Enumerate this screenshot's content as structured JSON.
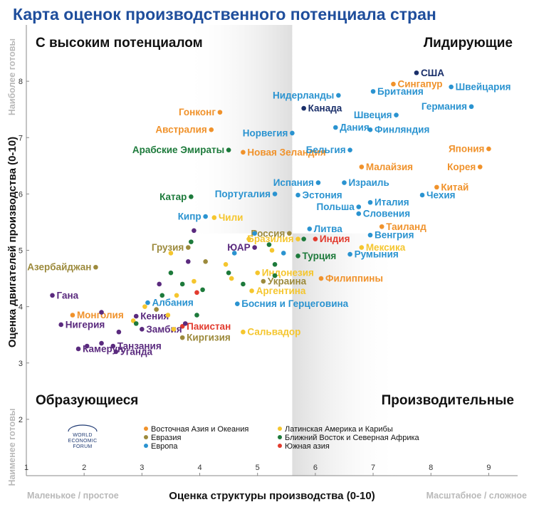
{
  "chart_data": {
    "type": "scatter",
    "title": "Карта оценок производственного потенциала стран",
    "xlabel": "Оценка структуры производства (0-10)",
    "ylabel": "Оценка двигателей производства (0-10)",
    "x_low_label": "Маленькое / простое",
    "x_high_label": "Масштабное / сложное",
    "y_high_label": "Наиболее готовы",
    "y_low_label": "Наименее готовы",
    "xlim": [
      1,
      9.5
    ],
    "ylim": [
      1,
      9
    ],
    "x_ticks": [
      "1",
      "2",
      "3",
      "4",
      "5",
      "6",
      "7",
      "8",
      "9"
    ],
    "y_ticks": [
      "2",
      "3",
      "4",
      "5",
      "6",
      "7",
      "8"
    ],
    "quadrant_split": {
      "x": 5.6,
      "y": 5.3
    },
    "quadrants": {
      "top_left": "С высоким потенциалом",
      "top_right": "Лидирующие",
      "bottom_left": "Образующиеся",
      "bottom_right": "Производительные"
    },
    "grid": false,
    "legend_position": "bottom-center",
    "regions": [
      {
        "key": "asia",
        "name": "Восточная Азия и Океания",
        "color": "#f0922b"
      },
      {
        "key": "eurasia",
        "name": "Евразия",
        "color": "#9c8a3c"
      },
      {
        "key": "europe",
        "name": "Европа",
        "color": "#2a93d0"
      },
      {
        "key": "latam",
        "name": "Латинская Америка и Карибы",
        "color": "#f5c62e"
      },
      {
        "key": "mena",
        "name": "Ближний Восток и Северная Африка",
        "color": "#1d7a3b"
      },
      {
        "key": "south_asia",
        "name": "Южная азия",
        "color": "#e23b2e"
      },
      {
        "key": "ssa",
        "name": "",
        "color": "#5a2a7e"
      },
      {
        "key": "north_america",
        "name": "",
        "color": "#1a2f6a"
      }
    ],
    "points": [
      {
        "label": "США",
        "x": 7.75,
        "y": 8.15,
        "region": "north_america",
        "anchor": "start"
      },
      {
        "label": "Сингапур",
        "x": 7.35,
        "y": 7.95,
        "region": "asia",
        "anchor": "start"
      },
      {
        "label": "Швейцария",
        "x": 8.35,
        "y": 7.9,
        "region": "europe",
        "anchor": "start"
      },
      {
        "label": "Нидерланды",
        "x": 6.4,
        "y": 7.75,
        "region": "europe",
        "anchor": "end"
      },
      {
        "label": "Британия",
        "x": 7.0,
        "y": 7.82,
        "region": "europe",
        "anchor": "start"
      },
      {
        "label": "Германия",
        "x": 8.7,
        "y": 7.55,
        "region": "europe",
        "anchor": "end"
      },
      {
        "label": "Швеция",
        "x": 7.4,
        "y": 7.4,
        "region": "europe",
        "anchor": "end"
      },
      {
        "label": "Канада",
        "x": 5.8,
        "y": 7.52,
        "region": "north_america",
        "anchor": "start"
      },
      {
        "label": "Гонконг",
        "x": 4.35,
        "y": 7.45,
        "region": "asia",
        "anchor": "end"
      },
      {
        "label": "Дания",
        "x": 6.35,
        "y": 7.18,
        "region": "europe",
        "anchor": "start"
      },
      {
        "label": "Финляндия",
        "x": 6.95,
        "y": 7.14,
        "region": "europe",
        "anchor": "start"
      },
      {
        "label": "Австралия",
        "x": 4.2,
        "y": 7.14,
        "region": "asia",
        "anchor": "end"
      },
      {
        "label": "Норвегия",
        "x": 5.6,
        "y": 7.08,
        "region": "europe",
        "anchor": "end"
      },
      {
        "label": "Арабские Эмираты",
        "x": 4.5,
        "y": 6.78,
        "region": "mena",
        "anchor": "end"
      },
      {
        "label": "Новая Зеландия",
        "x": 4.75,
        "y": 6.74,
        "region": "asia",
        "anchor": "start"
      },
      {
        "label": "Бельгия",
        "x": 6.6,
        "y": 6.78,
        "region": "europe",
        "anchor": "end"
      },
      {
        "label": "Япония",
        "x": 9.0,
        "y": 6.8,
        "region": "asia",
        "anchor": "end"
      },
      {
        "label": "Малайзия",
        "x": 6.8,
        "y": 6.48,
        "region": "asia",
        "anchor": "start"
      },
      {
        "label": "Корея",
        "x": 8.85,
        "y": 6.48,
        "region": "asia",
        "anchor": "end"
      },
      {
        "label": "Испания",
        "x": 6.05,
        "y": 6.2,
        "region": "europe",
        "anchor": "end"
      },
      {
        "label": "Израиль",
        "x": 6.5,
        "y": 6.2,
        "region": "europe",
        "anchor": "start"
      },
      {
        "label": "Китай",
        "x": 8.1,
        "y": 6.12,
        "region": "asia",
        "anchor": "start"
      },
      {
        "label": "Катар",
        "x": 3.85,
        "y": 5.95,
        "region": "mena",
        "anchor": "end"
      },
      {
        "label": "Португалия",
        "x": 5.3,
        "y": 6.0,
        "region": "europe",
        "anchor": "end"
      },
      {
        "label": "Эстония",
        "x": 5.7,
        "y": 5.98,
        "region": "europe",
        "anchor": "start"
      },
      {
        "label": "Чехия",
        "x": 7.85,
        "y": 5.98,
        "region": "europe",
        "anchor": "start"
      },
      {
        "label": "Италия",
        "x": 6.95,
        "y": 5.85,
        "region": "europe",
        "anchor": "start"
      },
      {
        "label": "Польша",
        "x": 6.75,
        "y": 5.77,
        "region": "europe",
        "anchor": "end"
      },
      {
        "label": "Кипр",
        "x": 4.1,
        "y": 5.6,
        "region": "europe",
        "anchor": "end"
      },
      {
        "label": "Чили",
        "x": 4.25,
        "y": 5.58,
        "region": "latam",
        "anchor": "start"
      },
      {
        "label": "Россия",
        "x": 5.55,
        "y": 5.3,
        "region": "eurasia",
        "anchor": "end"
      },
      {
        "label": "Словения",
        "x": 6.75,
        "y": 5.65,
        "region": "europe",
        "anchor": "start"
      },
      {
        "label": "Таиланд",
        "x": 7.15,
        "y": 5.42,
        "region": "asia",
        "anchor": "start"
      },
      {
        "label": "Литва",
        "x": 5.9,
        "y": 5.38,
        "region": "europe",
        "anchor": "start"
      },
      {
        "label": "Венгрия",
        "x": 6.95,
        "y": 5.27,
        "region": "europe",
        "anchor": "start"
      },
      {
        "label": "Индия",
        "x": 6.0,
        "y": 5.2,
        "region": "south_asia",
        "anchor": "start"
      },
      {
        "label": "Бразилия",
        "x": 5.7,
        "y": 5.2,
        "region": "latam",
        "anchor": "end"
      },
      {
        "label": "Грузия",
        "x": 3.8,
        "y": 5.05,
        "region": "eurasia",
        "anchor": "end"
      },
      {
        "label": "ЮАР",
        "x": 4.95,
        "y": 5.05,
        "region": "ssa",
        "anchor": "end"
      },
      {
        "label": "Мексика",
        "x": 6.8,
        "y": 5.05,
        "region": "latam",
        "anchor": "start"
      },
      {
        "label": "Азербайджан",
        "x": 2.2,
        "y": 4.7,
        "region": "eurasia",
        "anchor": "end"
      },
      {
        "label": "Турция",
        "x": 5.7,
        "y": 4.9,
        "region": "mena",
        "anchor": "start"
      },
      {
        "label": "Румыния",
        "x": 6.6,
        "y": 4.93,
        "region": "europe",
        "anchor": "start"
      },
      {
        "label": "Индонезия",
        "x": 5.0,
        "y": 4.6,
        "region": "latam",
        "anchor": "start"
      },
      {
        "label": "Украина",
        "x": 5.1,
        "y": 4.45,
        "region": "eurasia",
        "anchor": "start"
      },
      {
        "label": "Филиппины",
        "x": 6.1,
        "y": 4.5,
        "region": "asia",
        "anchor": "start"
      },
      {
        "label": "Гана",
        "x": 1.45,
        "y": 4.2,
        "region": "ssa",
        "anchor": "start"
      },
      {
        "label": "Аргентина",
        "x": 4.9,
        "y": 4.28,
        "region": "latam",
        "anchor": "start"
      },
      {
        "label": "Албания",
        "x": 3.1,
        "y": 4.07,
        "region": "europe",
        "anchor": "start"
      },
      {
        "label": "Монголия",
        "x": 1.8,
        "y": 3.85,
        "region": "asia",
        "anchor": "start"
      },
      {
        "label": "Босния и Герцеговина",
        "x": 4.65,
        "y": 4.05,
        "region": "europe",
        "anchor": "start"
      },
      {
        "label": "Кения",
        "x": 2.9,
        "y": 3.83,
        "region": "ssa",
        "anchor": "start"
      },
      {
        "label": "Пакистан",
        "x": 3.7,
        "y": 3.65,
        "region": "south_asia",
        "anchor": "start"
      },
      {
        "label": "Нигерия",
        "x": 1.6,
        "y": 3.68,
        "region": "ssa",
        "anchor": "start"
      },
      {
        "label": "Замбия",
        "x": 3.0,
        "y": 3.6,
        "region": "ssa",
        "anchor": "start"
      },
      {
        "label": "Сальвадор",
        "x": 4.75,
        "y": 3.55,
        "region": "latam",
        "anchor": "start"
      },
      {
        "label": "Киргизия",
        "x": 3.7,
        "y": 3.45,
        "region": "eurasia",
        "anchor": "start"
      },
      {
        "label": "Танзания",
        "x": 2.5,
        "y": 3.3,
        "region": "ssa",
        "anchor": "start"
      },
      {
        "label": "Камерун",
        "x": 1.9,
        "y": 3.25,
        "region": "ssa",
        "anchor": "start"
      },
      {
        "label": "Уганда",
        "x": 2.55,
        "y": 3.2,
        "region": "ssa",
        "anchor": "start"
      },
      {
        "label": "",
        "x": 3.9,
        "y": 5.35,
        "region": "ssa"
      },
      {
        "label": "",
        "x": 3.85,
        "y": 5.15,
        "region": "mena"
      },
      {
        "label": "",
        "x": 3.5,
        "y": 4.95,
        "region": "latam"
      },
      {
        "label": "",
        "x": 4.1,
        "y": 4.8,
        "region": "eurasia"
      },
      {
        "label": "",
        "x": 4.6,
        "y": 4.95,
        "region": "europe"
      },
      {
        "label": "",
        "x": 4.85,
        "y": 5.2,
        "region": "latam"
      },
      {
        "label": "",
        "x": 4.95,
        "y": 5.3,
        "region": "europe"
      },
      {
        "label": "",
        "x": 5.2,
        "y": 5.1,
        "region": "mena"
      },
      {
        "label": "",
        "x": 5.3,
        "y": 4.75,
        "region": "mena"
      },
      {
        "label": "",
        "x": 5.45,
        "y": 4.95,
        "region": "europe"
      },
      {
        "label": "",
        "x": 5.25,
        "y": 5.0,
        "region": "latam"
      },
      {
        "label": "",
        "x": 3.8,
        "y": 4.8,
        "region": "ssa"
      },
      {
        "label": "",
        "x": 4.5,
        "y": 4.6,
        "region": "mena"
      },
      {
        "label": "",
        "x": 4.75,
        "y": 4.4,
        "region": "mena"
      },
      {
        "label": "",
        "x": 4.55,
        "y": 4.5,
        "region": "latam"
      },
      {
        "label": "",
        "x": 3.5,
        "y": 4.6,
        "region": "mena"
      },
      {
        "label": "",
        "x": 3.7,
        "y": 4.4,
        "region": "mena"
      },
      {
        "label": "",
        "x": 3.9,
        "y": 4.45,
        "region": "latam"
      },
      {
        "label": "",
        "x": 3.3,
        "y": 4.4,
        "region": "ssa"
      },
      {
        "label": "",
        "x": 3.35,
        "y": 4.2,
        "region": "mena"
      },
      {
        "label": "",
        "x": 3.6,
        "y": 4.2,
        "region": "latam"
      },
      {
        "label": "",
        "x": 3.95,
        "y": 4.25,
        "region": "south_asia"
      },
      {
        "label": "",
        "x": 4.05,
        "y": 4.3,
        "region": "mena"
      },
      {
        "label": "",
        "x": 3.05,
        "y": 4.0,
        "region": "latam"
      },
      {
        "label": "",
        "x": 3.25,
        "y": 3.95,
        "region": "eurasia"
      },
      {
        "label": "",
        "x": 3.45,
        "y": 3.85,
        "region": "latam"
      },
      {
        "label": "",
        "x": 3.55,
        "y": 3.6,
        "region": "latam"
      },
      {
        "label": "",
        "x": 3.75,
        "y": 3.7,
        "region": "ssa"
      },
      {
        "label": "",
        "x": 3.95,
        "y": 3.85,
        "region": "mena"
      },
      {
        "label": "",
        "x": 2.85,
        "y": 3.75,
        "region": "latam"
      },
      {
        "label": "",
        "x": 2.9,
        "y": 3.7,
        "region": "mena"
      },
      {
        "label": "",
        "x": 4.45,
        "y": 4.75,
        "region": "latam"
      },
      {
        "label": "",
        "x": 5.8,
        "y": 5.2,
        "region": "mena"
      },
      {
        "label": "",
        "x": 5.3,
        "y": 4.55,
        "region": "mena"
      },
      {
        "label": "",
        "x": 2.3,
        "y": 3.9,
        "region": "ssa"
      },
      {
        "label": "",
        "x": 2.6,
        "y": 3.55,
        "region": "ssa"
      },
      {
        "label": "",
        "x": 2.05,
        "y": 3.3,
        "region": "ssa"
      },
      {
        "label": "",
        "x": 2.3,
        "y": 3.35,
        "region": "ssa"
      }
    ]
  },
  "logo": {
    "line1": "WORLD",
    "line2": "ECONOMIC",
    "line3": "FORUM"
  }
}
